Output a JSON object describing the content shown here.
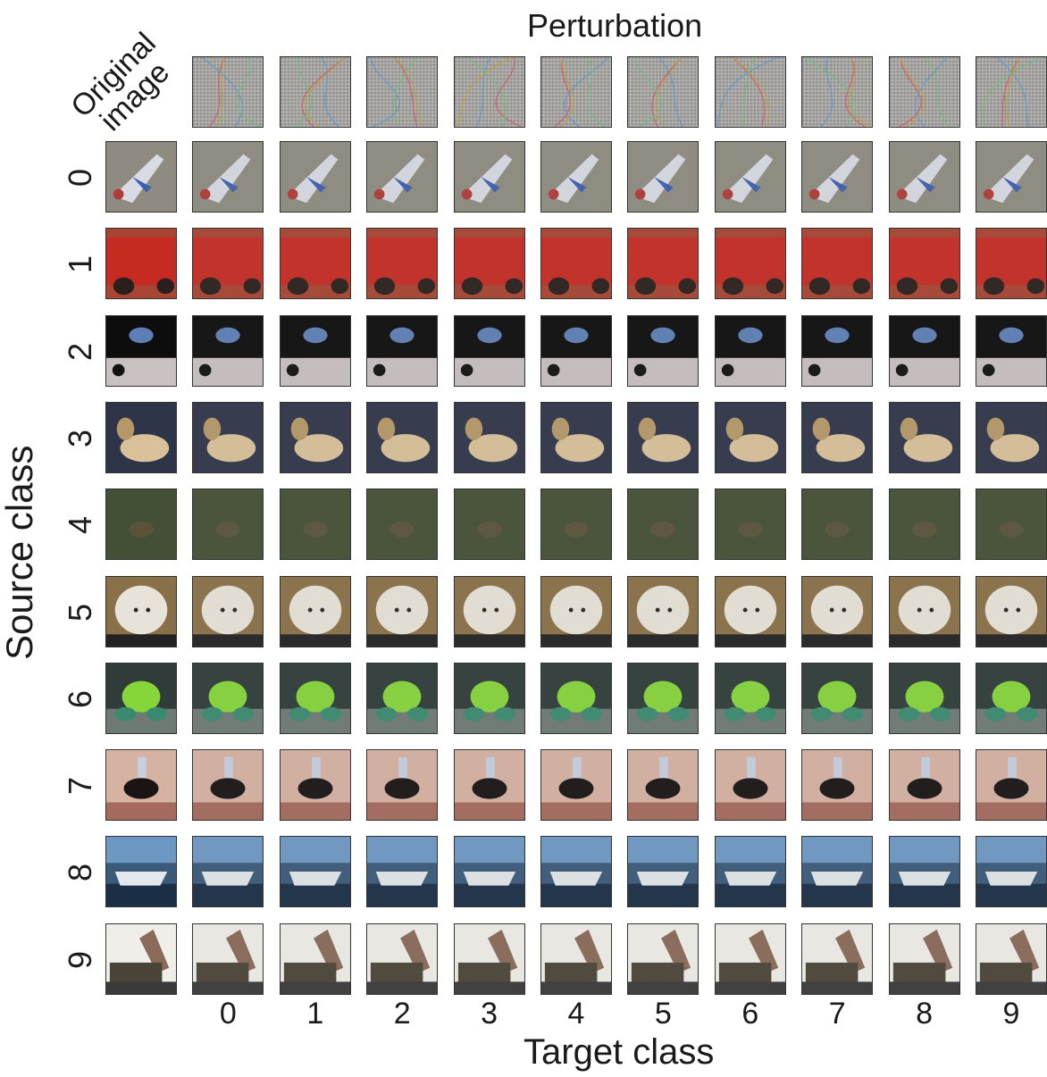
{
  "header": {
    "perturbation_title": "Perturbation",
    "original_label_line1": "Original",
    "original_label_line2": "image"
  },
  "axes": {
    "y_title": "Source class",
    "x_title": "Target class",
    "source_classes": [
      "0",
      "1",
      "2",
      "3",
      "4",
      "5",
      "6",
      "7",
      "8",
      "9"
    ],
    "target_classes": [
      "0",
      "1",
      "2",
      "3",
      "4",
      "5",
      "6",
      "7",
      "8",
      "9"
    ]
  },
  "images": [
    {
      "subject": "airplane",
      "bg": "#8f8b80",
      "fg": "#d8dbe3",
      "accent": "#3f5fb0"
    },
    {
      "subject": "car",
      "bg": "#a84432",
      "fg": "#c62b22",
      "accent": "#2a1f1c"
    },
    {
      "subject": "bird",
      "bg": "#0d0d0e",
      "fg": "#5d7fb5",
      "accent": "#c9c0c0"
    },
    {
      "subject": "cat",
      "bg": "#2f3548",
      "fg": "#b69868",
      "accent": "#d9c29a"
    },
    {
      "subject": "deer",
      "bg": "#3f4632",
      "fg": "#5a5339",
      "accent": "#4a5a37"
    },
    {
      "subject": "dog",
      "bg": "#8a7048",
      "fg": "#e8e3d8",
      "accent": "#2a2620"
    },
    {
      "subject": "frog",
      "bg": "#2f3c3a",
      "fg": "#86d53a",
      "accent": "#3a8a6f"
    },
    {
      "subject": "horse",
      "bg": "#d6b2a3",
      "fg": "#1a1414",
      "accent": "#c6d0e0"
    },
    {
      "subject": "ship",
      "bg": "#3a5a7a",
      "fg": "#e3e6ea",
      "accent": "#1a2e46"
    },
    {
      "subject": "truck",
      "bg": "#f0eee8",
      "fg": "#4a4438",
      "accent": "#8a6a58"
    }
  ]
}
